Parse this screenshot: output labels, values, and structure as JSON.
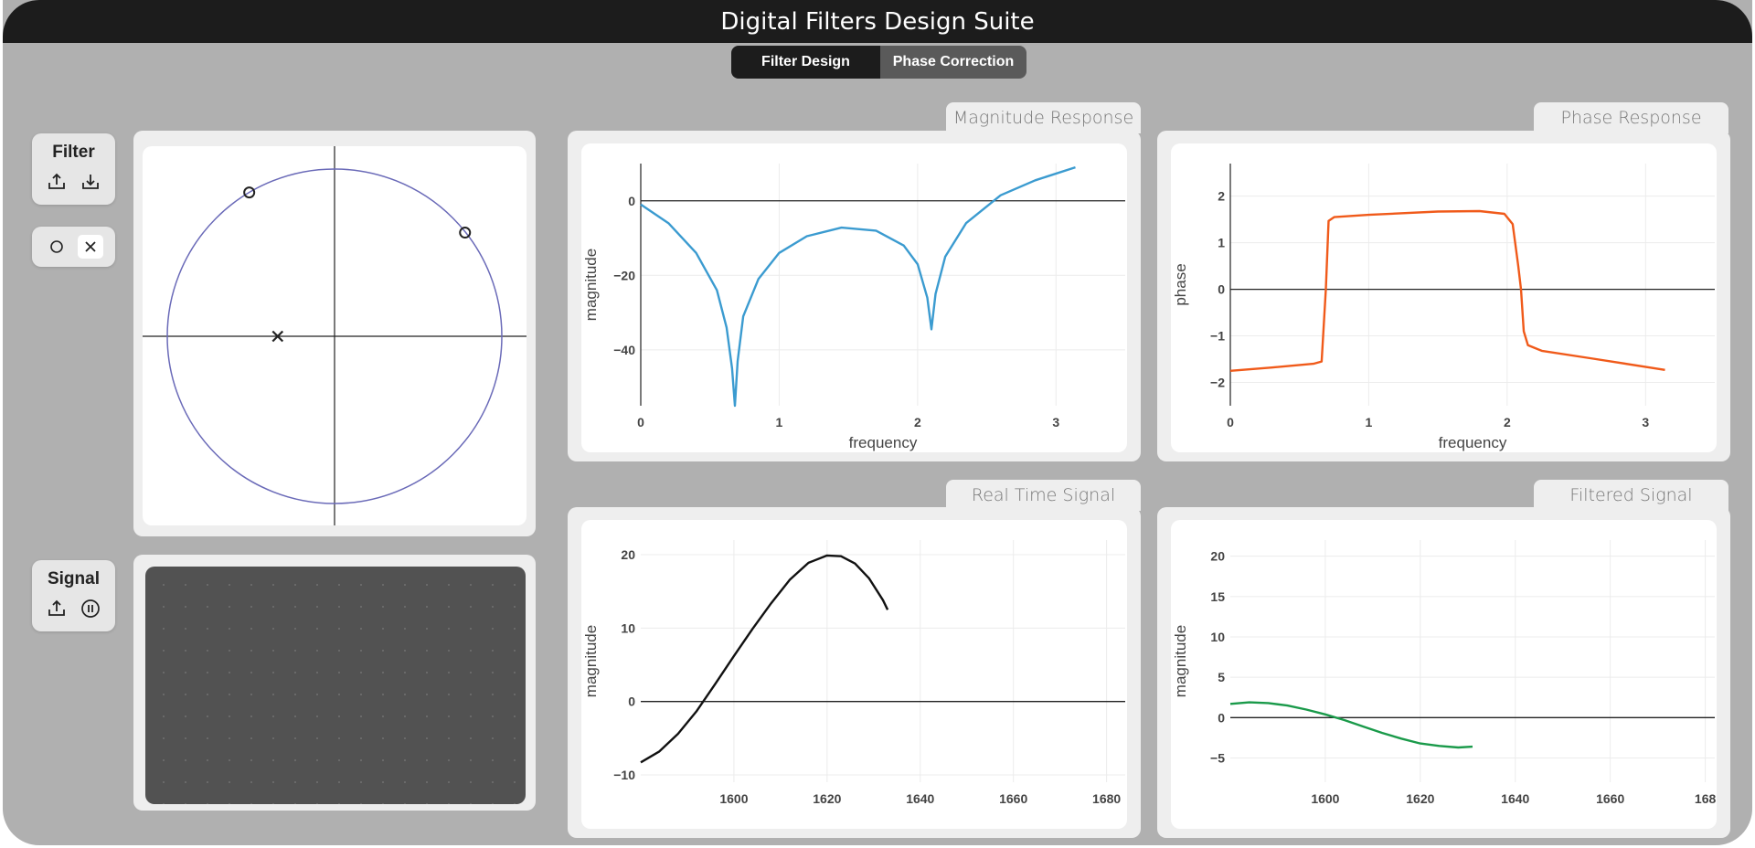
{
  "app": {
    "title": "Digital Filters Design Suite"
  },
  "tabs": [
    {
      "label": "Filter Design",
      "active": true
    },
    {
      "label": "Phase Correction",
      "active": false
    }
  ],
  "toolboxes": {
    "filter": {
      "label": "Filter",
      "icons": [
        "upload-icon",
        "download-icon"
      ]
    },
    "placement": {
      "icons": [
        "zero-circle-icon",
        "pole-x-icon"
      ],
      "selected": "pole-x-icon"
    },
    "signal": {
      "label": "Signal",
      "icons": [
        "upload-icon",
        "pause-icon"
      ]
    }
  },
  "panels": {
    "magnitude": {
      "title": "Magnitude Response"
    },
    "phase": {
      "title": "Phase Response"
    },
    "realtime": {
      "title": "Real Time Signal"
    },
    "filtered": {
      "title": "Filtered Signal"
    }
  },
  "colors": {
    "magnitude": "#3b9bd0",
    "phase": "#f05a1a",
    "realtime": "#111111",
    "filtered": "#1a9a4a",
    "unit_circle": "#6a6ab8"
  },
  "chart_data": [
    {
      "id": "zplane",
      "type": "scatter",
      "zeros": [
        {
          "re": -0.51,
          "im": 0.86
        },
        {
          "re": 0.78,
          "im": 0.62
        }
      ],
      "poles": [
        {
          "re": -0.34,
          "im": 0.0
        }
      ],
      "unit_circle": true
    },
    {
      "id": "magnitude",
      "type": "line",
      "xlabel": "frequency",
      "ylabel": "magnitude",
      "xlim": [
        0,
        3.5
      ],
      "ylim": [
        -55,
        10
      ],
      "xticks": [
        "0",
        "1",
        "2",
        "3"
      ],
      "yticks": [
        "0",
        "−20",
        "−40"
      ],
      "series": [
        {
          "x": [
            0,
            0.2,
            0.4,
            0.55,
            0.62,
            0.66,
            0.68,
            0.7,
            0.74,
            0.85,
            1.0,
            1.2,
            1.45,
            1.7,
            1.9,
            2.0,
            2.07,
            2.1,
            2.13,
            2.2,
            2.35,
            2.6,
            2.85,
            3.14
          ],
          "y": [
            -1,
            -6,
            -14,
            -24,
            -34,
            -45,
            -55,
            -43,
            -31,
            -21,
            -14,
            -9.5,
            -7.2,
            -8,
            -12,
            -17,
            -26,
            -34.5,
            -25,
            -15,
            -6,
            1.5,
            5.5,
            9
          ]
        }
      ]
    },
    {
      "id": "phase",
      "type": "line",
      "xlabel": "frequency",
      "ylabel": "phase",
      "xlim": [
        0,
        3.5
      ],
      "ylim": [
        -2.5,
        2.7
      ],
      "xticks": [
        "0",
        "1",
        "2",
        "3"
      ],
      "yticks": [
        "2",
        "1",
        "0",
        "−1",
        "−2"
      ],
      "series": [
        {
          "x": [
            0,
            0.3,
            0.6,
            0.66,
            0.69,
            0.71,
            0.75,
            1.0,
            1.5,
            1.8,
            1.98,
            2.04,
            2.08,
            2.1,
            2.12,
            2.15,
            2.25,
            2.6,
            3.14
          ],
          "y": [
            -1.75,
            -1.68,
            -1.6,
            -1.55,
            0.0,
            1.47,
            1.55,
            1.6,
            1.67,
            1.68,
            1.62,
            1.4,
            0.5,
            0.0,
            -0.9,
            -1.2,
            -1.32,
            -1.48,
            -1.73
          ]
        }
      ]
    },
    {
      "id": "realtime",
      "type": "line",
      "ylabel": "magnitude",
      "xlim": [
        1580,
        1684
      ],
      "ylim": [
        -11,
        22
      ],
      "xticks": [
        "1600",
        "1620",
        "1640",
        "1660",
        "1680"
      ],
      "yticks": [
        "20",
        "10",
        "0",
        "−10"
      ],
      "series": [
        {
          "x": [
            1580,
            1584,
            1588,
            1592,
            1596,
            1600,
            1604,
            1608,
            1612,
            1616,
            1620,
            1623,
            1626,
            1629,
            1632,
            1633
          ],
          "y": [
            -8.3,
            -6.8,
            -4.4,
            -1.3,
            2.4,
            6.2,
            9.9,
            13.4,
            16.6,
            18.9,
            19.9,
            19.8,
            18.8,
            16.8,
            13.8,
            12.5
          ]
        }
      ]
    },
    {
      "id": "filtered",
      "type": "line",
      "ylabel": "magnitude",
      "xlim": [
        1580,
        1682
      ],
      "ylim": [
        -8,
        22
      ],
      "xticks": [
        "1600",
        "1620",
        "1640",
        "1660",
        "168"
      ],
      "yticks": [
        "20",
        "15",
        "10",
        "5",
        "0",
        "−5"
      ],
      "series": [
        {
          "x": [
            1580,
            1584,
            1588,
            1592,
            1596,
            1600,
            1604,
            1608,
            1612,
            1616,
            1620,
            1624,
            1628,
            1631
          ],
          "y": [
            1.7,
            1.9,
            1.8,
            1.5,
            1.0,
            0.4,
            -0.3,
            -1.1,
            -1.9,
            -2.6,
            -3.2,
            -3.5,
            -3.7,
            -3.6
          ]
        }
      ]
    }
  ]
}
